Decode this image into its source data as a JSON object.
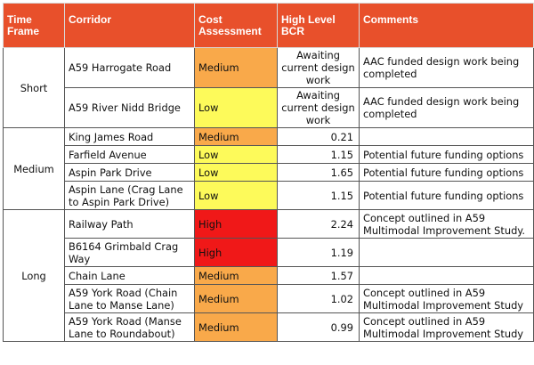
{
  "headers": {
    "time_frame": "Time Frame",
    "corridor": "Corridor",
    "cost": "Cost Assessment",
    "bcr": "High Level BCR",
    "comments": "Comments"
  },
  "groups": [
    {
      "time_frame": "Short",
      "rows": [
        {
          "corridor": "A59 Harrogate Road",
          "cost": "Medium",
          "cost_level": "medium",
          "bcr": "Awaiting current design work",
          "comments": "AAC funded design work being completed"
        },
        {
          "corridor": "A59 River Nidd Bridge",
          "cost": "Low",
          "cost_level": "low",
          "bcr": "Awaiting current design work",
          "comments": "AAC funded design work being completed"
        }
      ]
    },
    {
      "time_frame": "Medium",
      "rows": [
        {
          "corridor": "King James Road",
          "cost": "Medium",
          "cost_level": "medium",
          "bcr": "0.21",
          "comments": ""
        },
        {
          "corridor": "Farfield Avenue",
          "cost": "Low",
          "cost_level": "low",
          "bcr": "1.15",
          "comments": "Potential future funding options"
        },
        {
          "corridor": "Aspin Park Drive",
          "cost": "Low",
          "cost_level": "low",
          "bcr": "1.65",
          "comments": "Potential future funding options"
        },
        {
          "corridor": "Aspin Lane (Crag Lane to Aspin Park Drive)",
          "cost": "Low",
          "cost_level": "low",
          "bcr": "1.15",
          "comments": "Potential future funding options"
        }
      ]
    },
    {
      "time_frame": "Long",
      "rows": [
        {
          "corridor": "Railway Path",
          "cost": "High",
          "cost_level": "high",
          "bcr": "2.24",
          "comments": "Concept outlined in A59 Multimodal Improvement Study."
        },
        {
          "corridor": "B6164 Grimbald Crag Way",
          "cost": "High",
          "cost_level": "high",
          "bcr": "1.19",
          "comments": ""
        },
        {
          "corridor": "Chain Lane",
          "cost": "Medium",
          "cost_level": "medium",
          "bcr": "1.57",
          "comments": ""
        },
        {
          "corridor": "A59 York Road (Chain Lane to Manse Lane)",
          "cost": "Medium",
          "cost_level": "medium",
          "bcr": "1.02",
          "comments": "Concept outlined in A59 Multimodal Improvement Study"
        },
        {
          "corridor": "A59 York Road (Manse Lane to Roundabout)",
          "cost": "Medium",
          "cost_level": "medium",
          "bcr": "0.99",
          "comments": "Concept outlined in A59 Multimodal Improvement Study"
        }
      ]
    }
  ],
  "colors": {
    "header_bg": "#e8502b",
    "medium": "#f9a94a",
    "low": "#fdfa5a",
    "high": "#f01818"
  }
}
